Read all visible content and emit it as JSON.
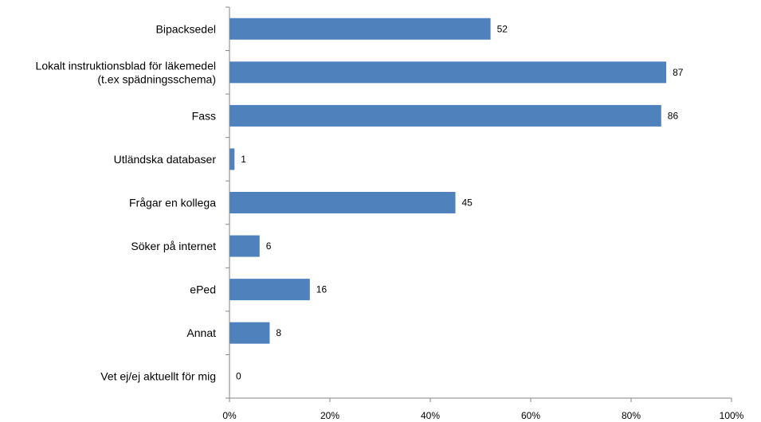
{
  "chart_data": {
    "type": "bar",
    "orientation": "horizontal",
    "categories": [
      [
        "Bipacksedel"
      ],
      [
        "Lokalt instruktionsblad för läkemedel",
        "(t.ex spädningsschema)"
      ],
      [
        "Fass"
      ],
      [
        "Utländska databaser"
      ],
      [
        "Frågar en kollega"
      ],
      [
        "Söker på internet"
      ],
      [
        "ePed"
      ],
      [
        "Annat"
      ],
      [
        "Vet ej/ej aktuellt för mig"
      ]
    ],
    "values": [
      52,
      87,
      86,
      1,
      45,
      6,
      16,
      8,
      0
    ],
    "data_labels": [
      "52",
      "87",
      "86",
      "1",
      "45",
      "6",
      "16",
      "8",
      "0"
    ],
    "xlim": [
      0,
      100
    ],
    "x_ticks": [
      0,
      20,
      40,
      60,
      80,
      100
    ],
    "x_tick_labels": [
      "0%",
      "20%",
      "40%",
      "60%",
      "80%",
      "100%"
    ],
    "bar_color": "#4F81BD",
    "grid": false,
    "legend": "none"
  }
}
